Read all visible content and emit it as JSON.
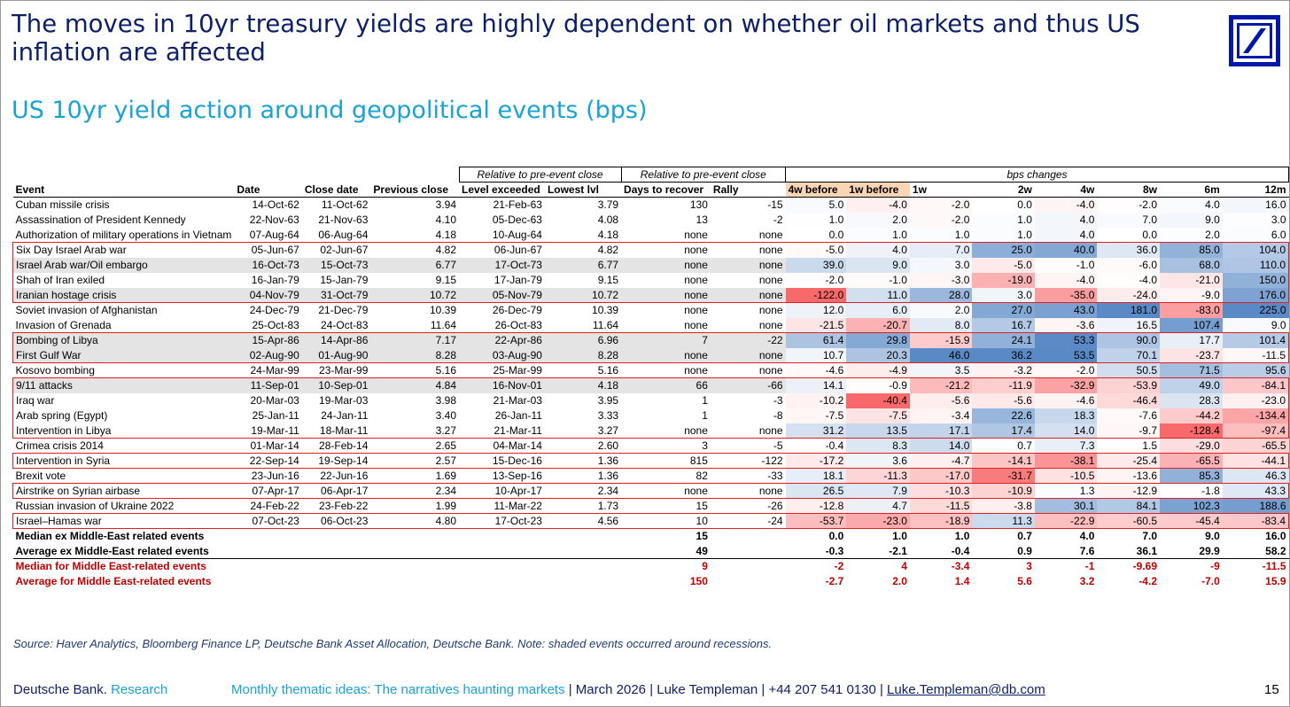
{
  "title": "The moves in 10yr treasury yields are highly dependent on whether oil markets and thus US inflation are affected",
  "subtitle": "US 10yr yield action around geopolitical events (bps)",
  "header_groups": {
    "relative1": "Relative to pre-event close",
    "relative2": "Relative to pre-event close",
    "bps": "bps changes"
  },
  "columns": [
    "Event",
    "Date",
    "Close date",
    "Previous close",
    "Level exceeded",
    "Lowest lvl",
    "Days to recover",
    "Rally",
    "4w before",
    "1w before",
    "1w",
    "2w",
    "4w",
    "8w",
    "6m",
    "12m"
  ],
  "rows": [
    {
      "event": "Cuban missile crisis",
      "date": "14-Oct-62",
      "close": "11-Oct-62",
      "prev": "3.94",
      "level": "21-Feb-63",
      "low": "3.79",
      "days": "130",
      "rally": "-15",
      "v": [
        "5.0",
        "-4.0",
        "-2.0",
        "0.0",
        "-4.0",
        "-2.0",
        "4.0",
        "16.0"
      ]
    },
    {
      "event": "Assassination of President Kennedy",
      "date": "22-Nov-63",
      "close": "21-Nov-63",
      "prev": "4.10",
      "level": "05-Dec-63",
      "low": "4.08",
      "days": "13",
      "rally": "-2",
      "v": [
        "1.0",
        "2.0",
        "-2.0",
        "1.0",
        "4.0",
        "7.0",
        "9.0",
        "3.0"
      ]
    },
    {
      "event": "Authorization of military operations in Vietnam",
      "date": "07-Aug-64",
      "close": "06-Aug-64",
      "prev": "4.18",
      "level": "10-Aug-64",
      "low": "4.18",
      "days": "none",
      "rally": "none",
      "v": [
        "0.0",
        "1.0",
        "1.0",
        "1.0",
        "4.0",
        "0.0",
        "2.0",
        "6.0"
      ]
    },
    {
      "event": "Six Day Israel Arab war",
      "date": "05-Jun-67",
      "close": "02-Jun-67",
      "prev": "4.82",
      "level": "06-Jun-67",
      "low": "4.82",
      "days": "none",
      "rally": "none",
      "v": [
        "-5.0",
        "4.0",
        "7.0",
        "25.0",
        "40.0",
        "36.0",
        "85.0",
        "104.0"
      ]
    },
    {
      "event": "Israel Arab war/Oil embargo",
      "date": "16-Oct-73",
      "close": "15-Oct-73",
      "prev": "6.77",
      "level": "17-Oct-73",
      "low": "6.77",
      "days": "none",
      "rally": "none",
      "v": [
        "39.0",
        "9.0",
        "3.0",
        "-5.0",
        "-1.0",
        "-6.0",
        "68.0",
        "110.0"
      ]
    },
    {
      "event": "Shah of Iran exiled",
      "date": "16-Jan-79",
      "close": "15-Jan-79",
      "prev": "9.15",
      "level": "17-Jan-79",
      "low": "9.15",
      "days": "none",
      "rally": "none",
      "v": [
        "-2.0",
        "-1.0",
        "-3.0",
        "-19.0",
        "-4.0",
        "-4.0",
        "-21.0",
        "150.0"
      ]
    },
    {
      "event": "Iranian hostage crisis",
      "date": "04-Nov-79",
      "close": "31-Oct-79",
      "prev": "10.72",
      "level": "05-Nov-79",
      "low": "10.72",
      "days": "none",
      "rally": "none",
      "v": [
        "-122.0",
        "11.0",
        "28.0",
        "3.0",
        "-35.0",
        "-24.0",
        "-9.0",
        "176.0"
      ]
    },
    {
      "event": "Soviet invasion of Afghanistan",
      "date": "24-Dec-79",
      "close": "21-Dec-79",
      "prev": "10.39",
      "level": "26-Dec-79",
      "low": "10.39",
      "days": "none",
      "rally": "none",
      "v": [
        "12.0",
        "6.0",
        "2.0",
        "27.0",
        "43.0",
        "181.0",
        "-83.0",
        "225.0"
      ]
    },
    {
      "event": "Invasion of Grenada",
      "date": "25-Oct-83",
      "close": "24-Oct-83",
      "prev": "11.64",
      "level": "26-Oct-83",
      "low": "11.64",
      "days": "none",
      "rally": "none",
      "v": [
        "-21.5",
        "-20.7",
        "8.0",
        "16.7",
        "-3.6",
        "16.5",
        "107.4",
        "9.0"
      ]
    },
    {
      "event": "Bombing of Libya",
      "date": "15-Apr-86",
      "close": "14-Apr-86",
      "prev": "7.17",
      "level": "22-Apr-86",
      "low": "6.96",
      "days": "7",
      "rally": "-22",
      "v": [
        "61.4",
        "29.8",
        "-15.9",
        "24.1",
        "53.3",
        "90.0",
        "17.7",
        "101.4"
      ]
    },
    {
      "event": "First Gulf War",
      "date": "02-Aug-90",
      "close": "01-Aug-90",
      "prev": "8.28",
      "level": "03-Aug-90",
      "low": "8.28",
      "days": "none",
      "rally": "none",
      "v": [
        "10.7",
        "20.3",
        "46.0",
        "36.2",
        "53.5",
        "70.1",
        "-23.7",
        "-11.5"
      ]
    },
    {
      "event": "Kosovo bombing",
      "date": "24-Mar-99",
      "close": "23-Mar-99",
      "prev": "5.16",
      "level": "25-Mar-99",
      "low": "5.16",
      "days": "none",
      "rally": "none",
      "v": [
        "-4.6",
        "-4.9",
        "3.5",
        "-3.2",
        "-2.0",
        "50.5",
        "71.5",
        "95.6"
      ]
    },
    {
      "event": "9/11 attacks",
      "date": "11-Sep-01",
      "close": "10-Sep-01",
      "prev": "4.84",
      "level": "16-Nov-01",
      "low": "4.18",
      "days": "66",
      "rally": "-66",
      "v": [
        "14.1",
        "-0.9",
        "-21.2",
        "-11.9",
        "-32.9",
        "-53.9",
        "49.0",
        "-84.1"
      ]
    },
    {
      "event": "Iraq war",
      "date": "20-Mar-03",
      "close": "19-Mar-03",
      "prev": "3.98",
      "level": "21-Mar-03",
      "low": "3.95",
      "days": "1",
      "rally": "-3",
      "v": [
        "-10.2",
        "-40.4",
        "-5.6",
        "-5.6",
        "-4.6",
        "-46.4",
        "28.3",
        "-23.0"
      ]
    },
    {
      "event": "Arab spring (Egypt)",
      "date": "25-Jan-11",
      "close": "24-Jan-11",
      "prev": "3.40",
      "level": "26-Jan-11",
      "low": "3.33",
      "days": "1",
      "rally": "-8",
      "v": [
        "-7.5",
        "-7.5",
        "-3.4",
        "22.6",
        "18.3",
        "-7.6",
        "-44.2",
        "-134.4"
      ]
    },
    {
      "event": "Intervention in Libya",
      "date": "19-Mar-11",
      "close": "18-Mar-11",
      "prev": "3.27",
      "level": "21-Mar-11",
      "low": "3.27",
      "days": "none",
      "rally": "none",
      "v": [
        "31.2",
        "13.5",
        "17.1",
        "17.4",
        "14.0",
        "-9.7",
        "-128.4",
        "-97.4"
      ]
    },
    {
      "event": "Crimea crisis 2014",
      "date": "01-Mar-14",
      "close": "28-Feb-14",
      "prev": "2.65",
      "level": "04-Mar-14",
      "low": "2.60",
      "days": "3",
      "rally": "-5",
      "v": [
        "-0.4",
        "8.3",
        "14.0",
        "0.7",
        "7.3",
        "1.5",
        "-29.0",
        "-65.5"
      ]
    },
    {
      "event": "Intervention in Syria",
      "date": "22-Sep-14",
      "close": "19-Sep-14",
      "prev": "2.57",
      "level": "15-Dec-16",
      "low": "1.36",
      "days": "815",
      "rally": "-122",
      "v": [
        "-17.2",
        "3.6",
        "-4.7",
        "-14.1",
        "-38.1",
        "-25.4",
        "-65.5",
        "-44.1"
      ]
    },
    {
      "event": "Brexit vote",
      "date": "23-Jun-16",
      "close": "22-Jun-16",
      "prev": "1.69",
      "level": "13-Sep-16",
      "low": "1.36",
      "days": "82",
      "rally": "-33",
      "v": [
        "18.1",
        "-11.3",
        "-17.0",
        "-31.7",
        "-10.5",
        "-13.6",
        "85.3",
        "46.3"
      ]
    },
    {
      "event": "Airstrike on Syrian airbase",
      "date": "07-Apr-17",
      "close": "06-Apr-17",
      "prev": "2.34",
      "level": "10-Apr-17",
      "low": "2.34",
      "days": "none",
      "rally": "none",
      "v": [
        "26.5",
        "7.9",
        "-10.3",
        "-10.9",
        "1.3",
        "-12.9",
        "-1.8",
        "43.3"
      ]
    },
    {
      "event": "Russian invasion of Ukraine 2022",
      "date": "24-Feb-22",
      "close": "23-Feb-22",
      "prev": "1.99",
      "level": "11-Mar-22",
      "low": "1.73",
      "days": "15",
      "rally": "-26",
      "v": [
        "-12.8",
        "4.7",
        "-11.5",
        "-3.8",
        "30.1",
        "84.1",
        "102.3",
        "188.6"
      ]
    },
    {
      "event": "Israel–Hamas war",
      "date": "07-Oct-23",
      "close": "06-Oct-23",
      "prev": "4.80",
      "level": "17-Oct-23",
      "low": "4.56",
      "days": "10",
      "rally": "-24",
      "v": [
        "-53.7",
        "-23.0",
        "-18.9",
        "11.3",
        "-22.9",
        "-60.5",
        "-45.4",
        "-83.4"
      ]
    }
  ],
  "summary": [
    {
      "label": "Median ex Middle-East related events",
      "days": "15",
      "v": [
        "0.0",
        "1.0",
        "1.0",
        "0.7",
        "4.0",
        "7.0",
        "9.0",
        "16.0"
      ]
    },
    {
      "label": "Average ex Middle-East related events",
      "days": "49",
      "v": [
        "-0.3",
        "-2.1",
        "-0.4",
        "0.9",
        "7.6",
        "36.1",
        "29.9",
        "58.2"
      ]
    },
    {
      "label": "Median for Middle East-related events",
      "days": "9",
      "v": [
        "-2",
        "4",
        "-3.4",
        "3",
        "-1",
        "-9.69",
        "-9",
        "-11.5"
      ]
    },
    {
      "label": "Average for Middle East-related events",
      "days": "150",
      "v": [
        "-2.7",
        "2.0",
        "1.4",
        "5.6",
        "3.2",
        "-4.2",
        "-7.0",
        "15.9"
      ]
    }
  ],
  "source": "Source: Haver Analytics, Bloomberg Finance LP, Deutsche Bank Asset Allocation, Deutsche Bank. Note: shaded events occurred around recessions.",
  "footer": {
    "brand": "Deutsche Bank.",
    "research": "Research",
    "doc_title": "Monthly thematic ideas: The narratives haunting markets",
    "details": " | March 2026 | Luke Templeman | +44 207 541 0130 | ",
    "email": "Luke.Templeman@db.com",
    "page": "15"
  },
  "colors": {
    "title": "#0c1f6b",
    "subtitle": "#18a2d6",
    "logo": "#0018a8",
    "highlight_border": "#e02020",
    "summary_red": "#c00000",
    "header_highlight": "#fcd5b4",
    "heat_negative": "#f8696b",
    "heat_positive": "#5a8ac6"
  }
}
